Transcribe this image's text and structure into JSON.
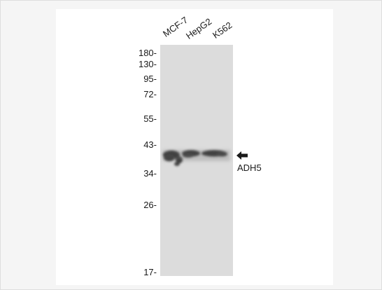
{
  "lanes": [
    "MCF-7",
    "HepG2",
    "K562"
  ],
  "markers": [
    "180-",
    "130-",
    "95-",
    "72-",
    "55-",
    "43-",
    "34-",
    "26-",
    "17-"
  ],
  "target": "ADH5",
  "colors": {
    "background": "#f5f5f5",
    "panel": "#ffffff",
    "membrane": "#dcdcdc",
    "band": "#1a1a1a",
    "text": "#1a1a1a"
  },
  "icons": {
    "pointer": "left-arrow-icon"
  }
}
